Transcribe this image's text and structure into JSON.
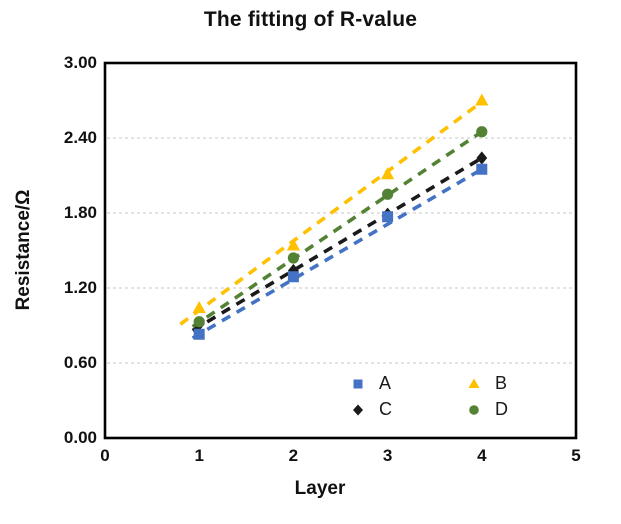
{
  "chart_data": {
    "type": "scatter",
    "title": "The fitting of R-value",
    "xlabel": "Layer",
    "ylabel": "Resistance/Ω",
    "xlim": [
      0,
      5
    ],
    "ylim": [
      0,
      3
    ],
    "x_ticks": [
      "0",
      "1",
      "2",
      "3",
      "4",
      "5"
    ],
    "y_ticks": [
      "0.00",
      "0.60",
      "1.20",
      "1.80",
      "2.40",
      "3.00"
    ],
    "grid": "horizontal-dashed",
    "grid_color": "#d2d2d2",
    "frame_color": "#000000",
    "legend_position": "inside-bottom-center",
    "x": [
      1,
      2,
      3,
      4
    ],
    "series": [
      {
        "name": "A",
        "marker": "square",
        "color": "#4472C4",
        "values": [
          0.83,
          1.29,
          1.77,
          2.15
        ],
        "trend": {
          "x0": 0.93,
          "y0": 0.8,
          "x1": 4.0,
          "y1": 2.15
        }
      },
      {
        "name": "B",
        "marker": "triangle",
        "color": "#FFC000",
        "values": [
          1.04,
          1.54,
          2.11,
          2.7
        ],
        "trend": {
          "x0": 0.8,
          "y0": 0.91,
          "x1": 4.02,
          "y1": 2.7
        }
      },
      {
        "name": "C",
        "marker": "diamond",
        "color": "#1A1A1A",
        "values": [
          0.91,
          1.34,
          1.79,
          2.24
        ],
        "trend": {
          "x0": 0.93,
          "y0": 0.86,
          "x1": 4.0,
          "y1": 2.24
        }
      },
      {
        "name": "D",
        "marker": "circle",
        "color": "#548235",
        "values": [
          0.93,
          1.44,
          1.95,
          2.45
        ],
        "trend": {
          "x0": 0.93,
          "y0": 0.89,
          "x1": 4.0,
          "y1": 2.45
        }
      }
    ],
    "legend_layout": [
      [
        "A",
        "B"
      ],
      [
        "C",
        "D"
      ]
    ]
  }
}
